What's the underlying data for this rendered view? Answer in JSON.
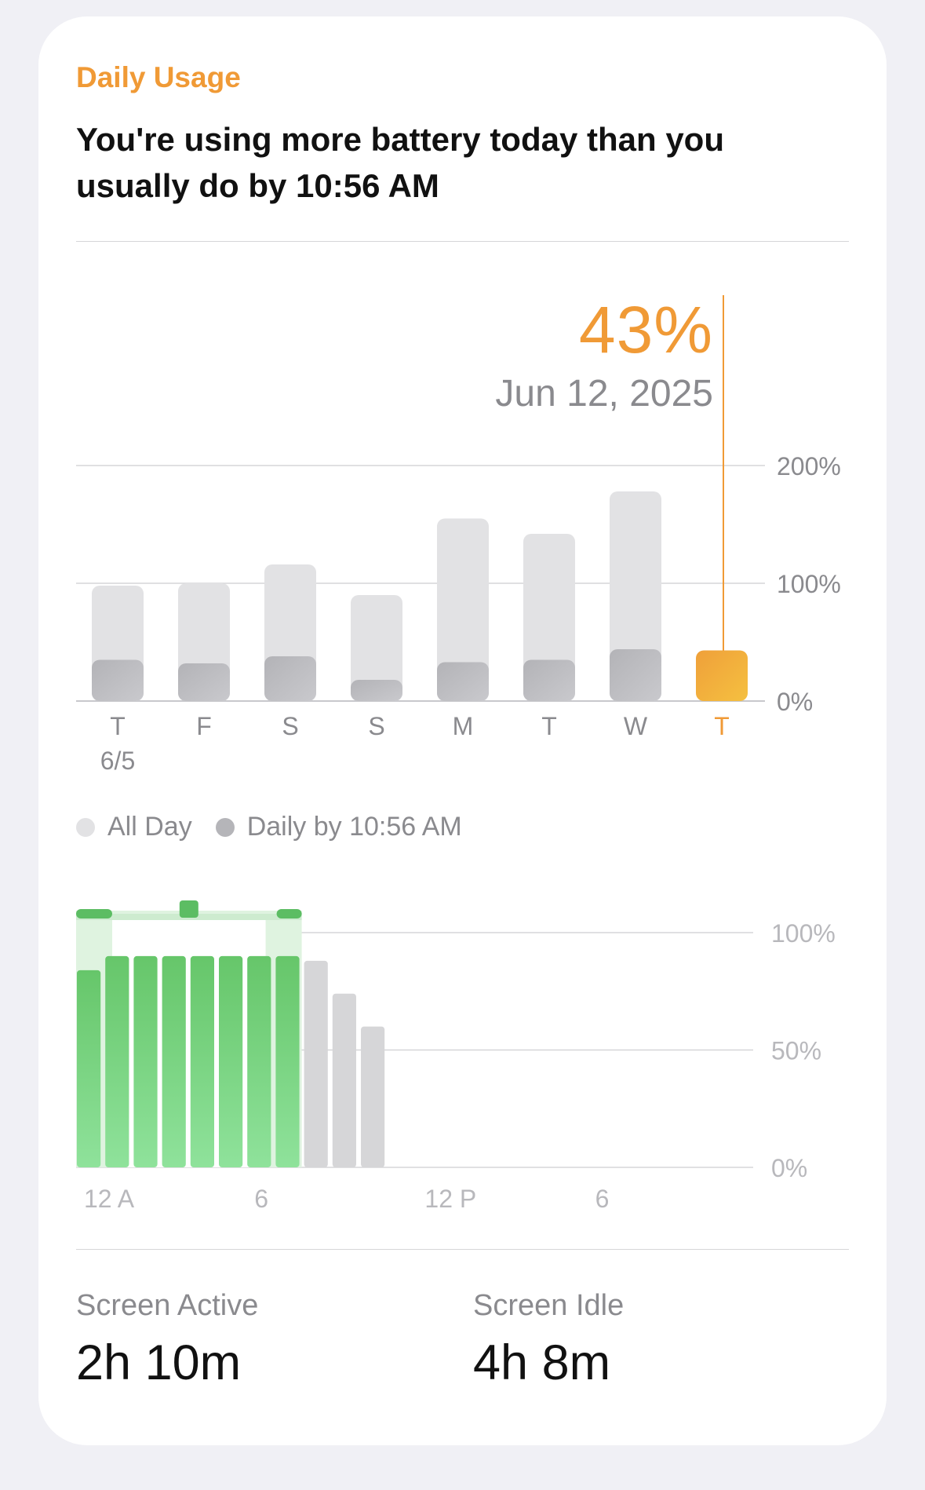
{
  "card": {
    "title": "Daily Usage",
    "subtitle": "You're using more battery today than you usually do by 10:56 AM"
  },
  "selection": {
    "percent": "43%",
    "date": "Jun 12, 2025"
  },
  "legend": {
    "all_day": "All Day",
    "daily_by": "Daily by 10:56 AM"
  },
  "colors": {
    "accent": "#f09a36",
    "bar_light": "#e2e2e4",
    "bar_dark": "#b8b8bc",
    "green": "#6cc86e",
    "gray_bar": "#d6d6d8"
  },
  "chart_data": [
    {
      "type": "bar",
      "categories": [
        "T",
        "F",
        "S",
        "S",
        "M",
        "T",
        "W",
        "T"
      ],
      "category_sublabels": [
        "6/5",
        "",
        "",
        "",
        "",
        "",
        "",
        ""
      ],
      "series": [
        {
          "name": "All Day",
          "values": [
            98,
            100,
            116,
            90,
            155,
            142,
            178,
            null
          ]
        },
        {
          "name": "Daily by 10:56 AM",
          "values": [
            35,
            32,
            38,
            18,
            33,
            35,
            44,
            43
          ]
        }
      ],
      "highlighted_index": 7,
      "y_ticks": [
        "0%",
        "100%",
        "200%"
      ],
      "ylim": [
        0,
        200
      ]
    },
    {
      "type": "bar",
      "x_ticks": [
        "12 A",
        "6",
        "12 P",
        "6"
      ],
      "y_ticks": [
        "0%",
        "50%",
        "100%"
      ],
      "ylim": [
        0,
        100
      ],
      "hours": [
        0,
        1,
        2,
        3,
        4,
        5,
        6,
        7,
        8,
        9,
        10
      ],
      "values": [
        84,
        90,
        90,
        90,
        90,
        90,
        90,
        90,
        88,
        74,
        60
      ],
      "highlighted_range": [
        0,
        7
      ]
    }
  ],
  "stats": {
    "screen_active_label": "Screen Active",
    "screen_active_value": "2h 10m",
    "screen_idle_label": "Screen Idle",
    "screen_idle_value": "4h 8m"
  }
}
